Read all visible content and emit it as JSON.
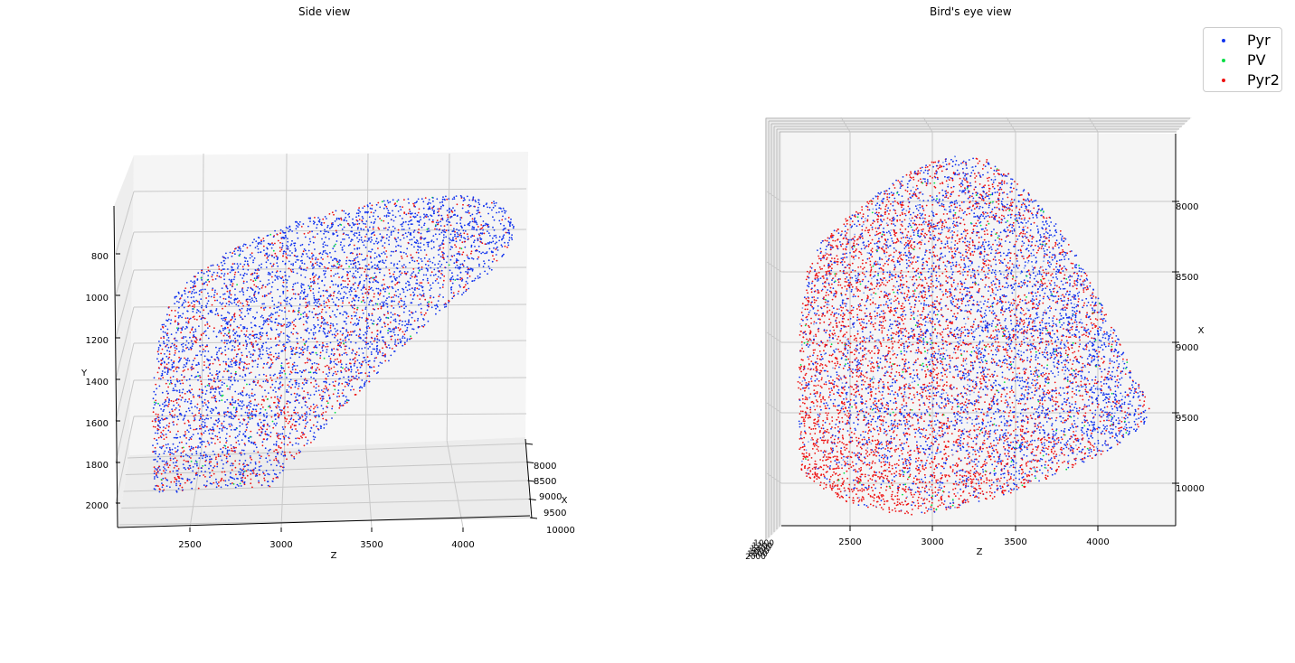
{
  "colors": {
    "Pyr": "#1133ee",
    "PV": "#00dd44",
    "Pyr2": "#ee1111",
    "pane": "#f5f5f5",
    "grid": "#c8c8c8"
  },
  "chart_data": [
    {
      "type": "scatter",
      "title": "Side view",
      "projection": "3d",
      "series": [
        {
          "name": "Pyr"
        },
        {
          "name": "PV"
        },
        {
          "name": "Pyr2"
        }
      ],
      "axes": {
        "x": {
          "label": "X",
          "ticks": [
            8000,
            8500,
            9000,
            9500,
            10000
          ],
          "range": [
            7800,
            10100
          ]
        },
        "y": {
          "label": "Y",
          "ticks": [
            800,
            1000,
            1200,
            1400,
            1600,
            1800,
            2000
          ],
          "range": [
            600,
            2100
          ],
          "inverted": true
        },
        "z": {
          "label": "Z",
          "ticks": [
            2500,
            3000,
            3500,
            4000
          ],
          "range": [
            2100,
            4450
          ]
        }
      },
      "grid": true
    },
    {
      "type": "scatter",
      "title": "Bird's eye view",
      "projection": "3d",
      "series": [
        {
          "name": "Pyr"
        },
        {
          "name": "PV"
        },
        {
          "name": "Pyr2"
        }
      ],
      "axes": {
        "x": {
          "label": "X",
          "ticks": [
            8000,
            8500,
            9000,
            9500,
            10000
          ],
          "range": [
            7600,
            10250
          ]
        },
        "y": {
          "label": "",
          "ticks": [
            1000,
            1200,
            1400,
            1600,
            1800,
            2000
          ]
        },
        "z": {
          "label": "Z",
          "ticks": [
            2500,
            3000,
            3500,
            4000
          ],
          "range": [
            2100,
            4500
          ]
        }
      },
      "grid": true
    }
  ],
  "legend": {
    "placement": "top-right",
    "items": [
      "Pyr",
      "PV",
      "Pyr2"
    ]
  }
}
